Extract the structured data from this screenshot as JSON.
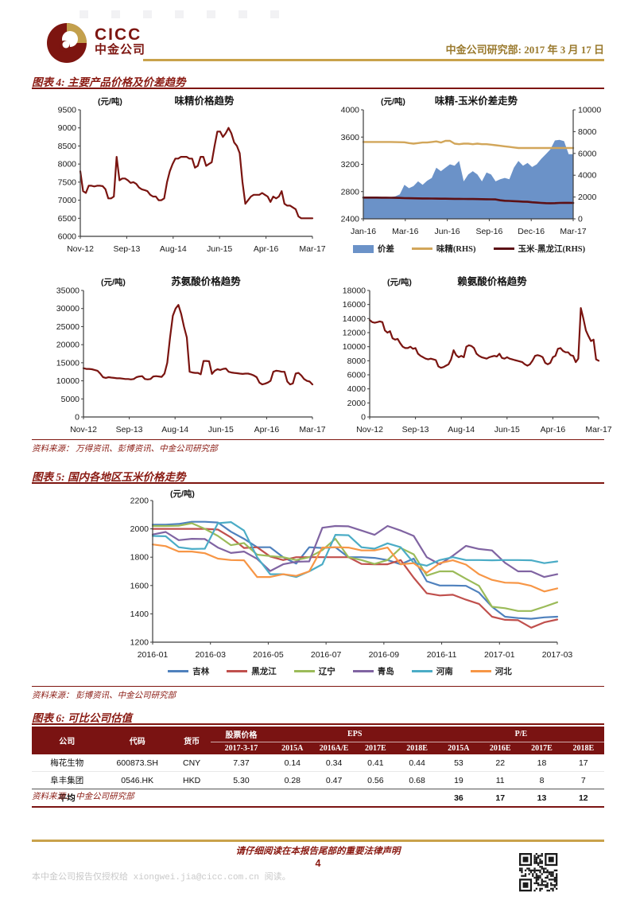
{
  "header": {
    "logo_en": "CICC",
    "logo_cn": "中金公司",
    "dept_date": "中金公司研究部:  2017 年 3 月 17 日"
  },
  "figure4": {
    "label": "图表 4:",
    "title": "主要产品价格及价差趋势",
    "source": "资料来源：  万得资讯、彭博资讯、中金公司研究部"
  },
  "figure5": {
    "label": "图表 5:",
    "title": "国内各地区玉米价格走势",
    "source": "资料来源：  彭博资讯、中金公司研究部"
  },
  "figure6": {
    "label": "图表 6:",
    "title": "可比公司估值",
    "source": "资料来源：  中金公司研究部",
    "table": {
      "h_company": "公司",
      "h_code": "代码",
      "h_currency": "货币",
      "h_price": "股票价格",
      "h_price_sub": "2017-3-17",
      "h_eps": "EPS",
      "eps_subs": [
        "2015A",
        "2016A/E",
        "2017E",
        "2018E"
      ],
      "h_pe": "P/E",
      "pe_subs": [
        "2015A",
        "2016E",
        "2017E",
        "2018E"
      ],
      "rows": [
        [
          "梅花生物",
          "600873.SH",
          "CNY",
          "7.37",
          "0.14",
          "0.34",
          "0.41",
          "0.44",
          "53",
          "22",
          "18",
          "17"
        ],
        [
          "阜丰集团",
          "0546.HK",
          "HKD",
          "5.30",
          "0.28",
          "0.47",
          "0.56",
          "0.68",
          "19",
          "11",
          "8",
          "7"
        ]
      ],
      "avg_label": "平均",
      "avg_values": [
        "36",
        "17",
        "13",
        "12"
      ]
    }
  },
  "footer": {
    "disclaimer": "请仔细阅读在本报告尾部的重要法律声明",
    "page": "4",
    "watermark": "本中金公司报告仅授权给 xiongwei.jia@cicc.com.cn 阅读。"
  },
  "colors": {
    "maroon_line": "#7a1410",
    "figure_red": "#8a1a12",
    "gold": "#c9a24b",
    "table_header_bg": "#7a1312",
    "spread_blue": "#6b92c8",
    "msg_tan": "#d2a65a",
    "corn_dark": "#5c1015"
  },
  "chart_data": [
    {
      "name": "msg-price-trend",
      "type": "line",
      "title": "味精价格趋势",
      "unit": "(元/吨)",
      "ylim": [
        6000,
        9500
      ],
      "ystep": 500,
      "xticklabels": [
        "Nov-12",
        "Sep-13",
        "Aug-14",
        "Jun-15",
        "Apr-16",
        "Mar-17"
      ],
      "series": [
        {
          "name": "味精",
          "color": "#7a1410",
          "width": 2.2,
          "values": [
            7800,
            7250,
            7200,
            7400,
            7400,
            7380,
            7400,
            7400,
            7390,
            7300,
            7050,
            7050,
            7100,
            8200,
            7550,
            7600,
            7600,
            7550,
            7480,
            7500,
            7450,
            7350,
            7300,
            7280,
            7250,
            7150,
            7100,
            7100,
            7000,
            7000,
            7050,
            7500,
            7800,
            8000,
            8150,
            8150,
            8200,
            8200,
            8200,
            8150,
            8150,
            7900,
            7950,
            8200,
            8200,
            7950,
            8000,
            8050,
            8500,
            8900,
            8900,
            8750,
            8850,
            9000,
            8850,
            8600,
            8500,
            8300,
            7500,
            6900,
            7000,
            7100,
            7150,
            7150,
            7150,
            7200,
            7150,
            7100,
            6950,
            7100,
            7050,
            7100,
            7250,
            6900,
            6850,
            6850,
            6800,
            6750,
            6550,
            6500,
            6500,
            6500,
            6500,
            6500
          ]
        }
      ]
    },
    {
      "name": "msg-corn-spread",
      "type": "dual",
      "title": "味精-玉米价差走势",
      "unit": "(元/吨)",
      "ylim": [
        2400,
        4000
      ],
      "ystep": 400,
      "ylim_right": [
        0,
        10000
      ],
      "ystep_right": 2000,
      "legend": true,
      "xticklabels": [
        "Jan-16",
        "Mar-16",
        "Jun-16",
        "Sep-16",
        "Dec-16",
        "Mar-17"
      ],
      "series": [
        {
          "name": "价差",
          "type": "area",
          "axis": "left",
          "color": "#6b92c8",
          "values": [
            2700,
            2720,
            2720,
            2710,
            2700,
            2710,
            2720,
            2730,
            2760,
            2900,
            2850,
            2880,
            2950,
            2900,
            2960,
            3000,
            3150,
            3100,
            3150,
            3200,
            3180,
            3250,
            2950,
            3050,
            3100,
            3050,
            2950,
            3080,
            3050,
            2950,
            2980,
            3000,
            2980,
            3150,
            3250,
            3180,
            3220,
            3160,
            3200,
            3280,
            3350,
            3420,
            3550,
            3560,
            3540,
            3350,
            3350
          ]
        },
        {
          "name": "味精(RHS)",
          "type": "line",
          "axis": "right",
          "color": "#d2a65a",
          "width": 2.4,
          "values": [
            7050,
            7050,
            7050,
            7050,
            7050,
            7050,
            7050,
            7040,
            7030,
            7020,
            6950,
            6900,
            6950,
            7000,
            7000,
            7050,
            7100,
            7000,
            7150,
            7150,
            6900,
            6850,
            6900,
            6900,
            6850,
            6900,
            6850,
            6850,
            6800,
            6750,
            6700,
            6650,
            6600,
            6550,
            6500,
            6500,
            6500,
            6500,
            6500,
            6500,
            6500,
            6500,
            6500,
            6500,
            6500,
            6500,
            6500
          ]
        },
        {
          "name": "玉米-黑龙江(RHS)",
          "type": "line",
          "axis": "right",
          "color": "#5c1015",
          "width": 2.6,
          "values": [
            1950,
            1950,
            1950,
            1950,
            1945,
            1940,
            1935,
            1930,
            1920,
            1900,
            1890,
            1880,
            1875,
            1870,
            1865,
            1860,
            1855,
            1850,
            1845,
            1840,
            1835,
            1830,
            1825,
            1820,
            1815,
            1810,
            1800,
            1795,
            1790,
            1780,
            1700,
            1660,
            1640,
            1620,
            1600,
            1580,
            1560,
            1520,
            1490,
            1460,
            1440,
            1430,
            1440,
            1460,
            1470,
            1470,
            1460
          ]
        }
      ]
    },
    {
      "name": "threonine-price-trend",
      "type": "line",
      "title": "苏氨酸价格趋势",
      "unit": "(元/吨)",
      "ylim": [
        0,
        35000
      ],
      "ystep": 5000,
      "xticklabels": [
        "Nov-12",
        "Sep-13",
        "Aug-14",
        "Jun-15",
        "Apr-16",
        "Mar-17"
      ],
      "series": [
        {
          "name": "苏氨酸",
          "color": "#7a1410",
          "width": 2.2,
          "values": [
            13500,
            13300,
            13300,
            13200,
            13000,
            12800,
            12000,
            11000,
            10800,
            11000,
            10900,
            10800,
            10700,
            10700,
            10600,
            10500,
            10500,
            10400,
            10500,
            11000,
            11200,
            11300,
            10500,
            10400,
            10500,
            11200,
            11300,
            11200,
            11100,
            12000,
            15000,
            22000,
            28000,
            30000,
            31000,
            28500,
            25000,
            22000,
            12500,
            12300,
            12200,
            12200,
            11800,
            15500,
            15500,
            15400,
            11900,
            12800,
            13200,
            13000,
            13300,
            13400,
            12500,
            12300,
            12200,
            12100,
            12000,
            11900,
            12000,
            12000,
            11800,
            11500,
            11000,
            9500,
            9000,
            9200,
            9500,
            10000,
            12500,
            12800,
            12700,
            12500,
            12500,
            9800,
            9000,
            9300,
            12000,
            12200,
            11500,
            10500,
            10000,
            9800,
            9000
          ]
        }
      ]
    },
    {
      "name": "lysine-price-trend",
      "type": "line",
      "title": "赖氨酸价格趋势",
      "unit": "(元/吨)",
      "ylim": [
        0,
        18000
      ],
      "ystep": 2000,
      "xticklabels": [
        "Nov-12",
        "Sep-13",
        "Aug-14",
        "Jun-15",
        "Apr-16",
        "Mar-17"
      ],
      "series": [
        {
          "name": "赖氨酸",
          "color": "#7a1410",
          "width": 2.2,
          "values": [
            13800,
            13500,
            13400,
            13500,
            13600,
            13500,
            12300,
            12000,
            12200,
            11200,
            11000,
            11100,
            10500,
            10000,
            9800,
            9800,
            10000,
            9700,
            9800,
            9000,
            8700,
            8500,
            8300,
            8200,
            8300,
            8200,
            8100,
            7200,
            7000,
            7100,
            7300,
            7500,
            8200,
            9500,
            8800,
            8500,
            8700,
            8500,
            10000,
            10200,
            10100,
            9800,
            9000,
            8700,
            8500,
            8400,
            8300,
            8500,
            8600,
            8700,
            8600,
            9000,
            8400,
            8300,
            8500,
            8300,
            8200,
            8100,
            8000,
            7900,
            7800,
            7500,
            7300,
            7500,
            8000,
            8700,
            8800,
            8700,
            8500,
            7700,
            7500,
            7700,
            8500,
            8700,
            9700,
            9800,
            9400,
            9200,
            9200,
            8800,
            8700,
            7800,
            8300,
            15500,
            14000,
            12300,
            11500,
            10800,
            11000,
            8200,
            8000
          ]
        }
      ]
    },
    {
      "name": "corn-price-by-region",
      "type": "line",
      "title": "",
      "unit": "(元/吨)",
      "ylim": [
        1200,
        2200
      ],
      "ystep": 200,
      "legend": true,
      "xticklabels": [
        "2016-01",
        "2016-03",
        "2016-05",
        "2016-07",
        "2016-09",
        "2016-11",
        "2017-01",
        "2017-03"
      ],
      "series": [
        {
          "name": "吉林",
          "color": "#4f81bd",
          "width": 2.2,
          "values": [
            2030,
            2030,
            2035,
            2050,
            2050,
            2045,
            1980,
            1930,
            1870,
            1870,
            1800,
            1755,
            1870,
            1865,
            1870,
            1800,
            1800,
            1795,
            1780,
            1750,
            1790,
            1630,
            1600,
            1600,
            1598,
            1550,
            1450,
            1380,
            1370,
            1365,
            1375,
            1380
          ]
        },
        {
          "name": "黑龙江",
          "color": "#c0504d",
          "width": 2.2,
          "values": [
            2000,
            2000,
            2000,
            2000,
            2000,
            1995,
            1940,
            1865,
            1870,
            1805,
            1780,
            1800,
            1800,
            1800,
            1800,
            1800,
            1752,
            1750,
            1750,
            1780,
            1655,
            1545,
            1530,
            1535,
            1500,
            1470,
            1380,
            1358,
            1355,
            1302,
            1340,
            1360
          ]
        },
        {
          "name": "辽宁",
          "color": "#9bbb59",
          "width": 2.2,
          "values": [
            2020,
            2020,
            2022,
            2040,
            2000,
            1950,
            1885,
            1900,
            1818,
            1808,
            1800,
            1780,
            1800,
            1850,
            1930,
            1800,
            1780,
            1752,
            1780,
            1865,
            1820,
            1670,
            1700,
            1700,
            1648,
            1598,
            1450,
            1440,
            1420,
            1420,
            1450,
            1482
          ]
        },
        {
          "name": "青岛",
          "color": "#8064a2",
          "width": 2.2,
          "values": [
            1960,
            1978,
            1920,
            1930,
            1928,
            1868,
            1830,
            1840,
            1788,
            1702,
            1750,
            1768,
            1770,
            2008,
            2020,
            2018,
            1988,
            1958,
            2020,
            1988,
            1950,
            1800,
            1750,
            1810,
            1880,
            1858,
            1848,
            1760,
            1700,
            1700,
            1660,
            1680
          ]
        },
        {
          "name": "河南",
          "color": "#4bacc6",
          "width": 2.2,
          "values": [
            1950,
            1948,
            1870,
            1858,
            1860,
            2040,
            2048,
            1988,
            1800,
            1680,
            1680,
            1660,
            1700,
            1750,
            1958,
            1955,
            1870,
            1860,
            1898,
            1870,
            1760,
            1740,
            1780,
            1800,
            1780,
            1780,
            1778,
            1780,
            1780,
            1778,
            1758,
            1770
          ]
        },
        {
          "name": "河北",
          "color": "#f79646",
          "width": 2.2,
          "values": [
            1890,
            1878,
            1840,
            1840,
            1828,
            1790,
            1780,
            1778,
            1660,
            1660,
            1680,
            1668,
            1700,
            1868,
            1870,
            1868,
            1848,
            1848,
            1868,
            1750,
            1758,
            1690,
            1758,
            1778,
            1748,
            1680,
            1640,
            1620,
            1618,
            1598,
            1558,
            1580
          ]
        }
      ]
    }
  ]
}
